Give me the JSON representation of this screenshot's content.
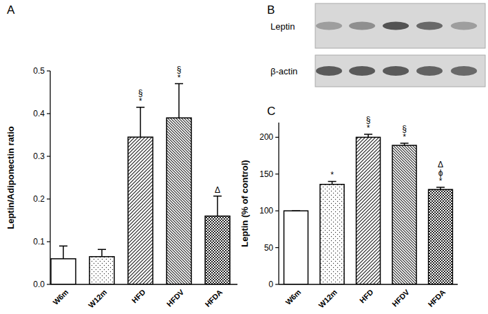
{
  "chart_data": [
    {
      "type": "bar",
      "title": "A",
      "y_label": "Leptin/Adiponectin ratio",
      "categories": [
        "W6m",
        "W12m",
        "HFD",
        "HFDV",
        "HFDA"
      ],
      "values": [
        0.06,
        0.065,
        0.345,
        0.39,
        0.16
      ],
      "errors": [
        0.03,
        0.017,
        0.07,
        0.08,
        0.047
      ],
      "annotations": [
        null,
        null,
        [
          "§",
          "*"
        ],
        [
          "§",
          "*"
        ],
        [
          "Δ"
        ]
      ],
      "ylim": [
        0,
        0.5
      ],
      "yticks": [
        {
          "value": 0,
          "label": "0.0"
        },
        0.1,
        0.2,
        0.3,
        0.4,
        0.5
      ],
      "grid": false
    },
    {
      "type": "bar",
      "title": "C",
      "y_label": "Leptin (% of control)",
      "categories": [
        "W6m",
        "W12m",
        "HFD",
        "HFDV",
        "HFDA"
      ],
      "values": [
        100,
        136,
        200,
        189,
        129
      ],
      "errors": [
        0,
        4,
        4,
        3,
        3
      ],
      "annotations": [
        null,
        [
          "*"
        ],
        [
          "§",
          "*"
        ],
        [
          "§",
          "*"
        ],
        [
          "Δ",
          "ϕ",
          "*"
        ]
      ],
      "ylim": [
        0,
        220
      ],
      "yticks": [
        0,
        50,
        100,
        150,
        200
      ],
      "grid": false
    }
  ],
  "blot": {
    "title": "B",
    "rows": [
      "Leptin",
      "β-actin"
    ]
  }
}
